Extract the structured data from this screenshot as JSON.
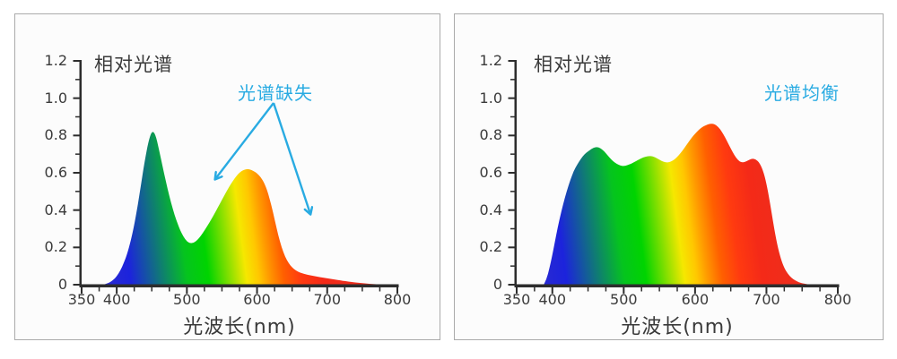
{
  "colors": {
    "page_bg": "#ffffff",
    "panel_bg": "#fcfcfc",
    "panel_border": "#ababab",
    "axis": "#2d2d2d",
    "text": "#3a3a3a",
    "accent_cyan": "#29abe2"
  },
  "spectrum_gradient": [
    {
      "wl": 380,
      "color": "#2b2bd0"
    },
    {
      "wl": 420,
      "color": "#1c23dc"
    },
    {
      "wl": 500,
      "color": "#05c41e"
    },
    {
      "wl": 530,
      "color": "#00d400"
    },
    {
      "wl": 560,
      "color": "#8ae000"
    },
    {
      "wl": 583,
      "color": "#f5e800"
    },
    {
      "wl": 600,
      "color": "#ffc800"
    },
    {
      "wl": 615,
      "color": "#ff9900"
    },
    {
      "wl": 635,
      "color": "#ff6000"
    },
    {
      "wl": 660,
      "color": "#ff3a10"
    },
    {
      "wl": 690,
      "color": "#f42a18"
    },
    {
      "wl": 780,
      "color": "#e83020"
    }
  ],
  "chart_data": [
    {
      "type": "area",
      "title": "相对光谱",
      "xlabel": "光波长(nm)",
      "annotation": {
        "text": "光谱缺失",
        "arrows": [
          {
            "from": [
              288,
              99
            ],
            "to": [
              223,
              184
            ]
          },
          {
            "from": [
              288,
              99
            ],
            "to": [
              329,
              223
            ]
          }
        ]
      },
      "x_range": [
        350,
        800
      ],
      "y_range": [
        0,
        1.2
      ],
      "x_ticks": [
        350,
        400,
        500,
        600,
        700,
        800
      ],
      "x_minor_step": 25,
      "y_ticks": [
        {
          "v": 0,
          "label": "0"
        },
        {
          "v": 0.2,
          "label": "0.2"
        },
        {
          "v": 0.4,
          "label": "0.4"
        },
        {
          "v": 0.6,
          "label": "0.6"
        },
        {
          "v": 0.8,
          "label": "0.8"
        },
        {
          "v": 1.0,
          "label": "1.0"
        },
        {
          "v": 1.2,
          "label": "1.2"
        }
      ],
      "y_minor_step": 0.1,
      "series": [
        {
          "x": [
            380,
            385,
            390,
            395,
            400,
            405,
            410,
            415,
            420,
            425,
            430,
            435,
            440,
            445,
            450,
            455,
            460,
            465,
            470,
            475,
            480,
            485,
            490,
            495,
            500,
            505,
            510,
            515,
            520,
            525,
            530,
            535,
            540,
            545,
            550,
            555,
            560,
            565,
            570,
            575,
            580,
            585,
            590,
            595,
            600,
            605,
            610,
            615,
            620,
            625,
            630,
            635,
            640,
            645,
            650,
            655,
            660,
            665,
            670,
            680,
            690,
            700,
            710,
            720,
            730,
            740,
            750,
            760,
            770,
            780
          ],
          "y": [
            0,
            0.005,
            0.012,
            0.025,
            0.045,
            0.075,
            0.115,
            0.165,
            0.235,
            0.32,
            0.425,
            0.545,
            0.665,
            0.765,
            0.825,
            0.81,
            0.73,
            0.64,
            0.555,
            0.475,
            0.405,
            0.345,
            0.295,
            0.258,
            0.232,
            0.222,
            0.225,
            0.24,
            0.262,
            0.29,
            0.32,
            0.352,
            0.385,
            0.42,
            0.455,
            0.49,
            0.523,
            0.553,
            0.58,
            0.601,
            0.614,
            0.62,
            0.618,
            0.61,
            0.597,
            0.578,
            0.548,
            0.5,
            0.432,
            0.35,
            0.268,
            0.2,
            0.15,
            0.115,
            0.092,
            0.077,
            0.067,
            0.06,
            0.055,
            0.047,
            0.04,
            0.034,
            0.028,
            0.022,
            0.017,
            0.012,
            0.008,
            0.005,
            0.003,
            0.001
          ]
        }
      ]
    },
    {
      "type": "area",
      "title": "相对光谱",
      "xlabel": "光波长(nm)",
      "annotation": {
        "text": "光谱均衡",
        "arrows": []
      },
      "x_range": [
        350,
        800
      ],
      "y_range": [
        0,
        1.2
      ],
      "x_ticks": [
        350,
        400,
        500,
        600,
        700,
        800
      ],
      "x_minor_step": 25,
      "y_ticks": [
        {
          "v": 0,
          "label": "0"
        },
        {
          "v": 0.2,
          "label": "0.2"
        },
        {
          "v": 0.4,
          "label": "0.4"
        },
        {
          "v": 0.6,
          "label": "0.6"
        },
        {
          "v": 0.8,
          "label": "0.8"
        },
        {
          "v": 1.0,
          "label": "1.0"
        },
        {
          "v": 1.2,
          "label": "1.2"
        }
      ],
      "y_minor_step": 0.1,
      "series": [
        {
          "x": [
            388,
            392,
            396,
            400,
            405,
            410,
            415,
            420,
            425,
            430,
            435,
            440,
            445,
            450,
            455,
            460,
            465,
            470,
            475,
            480,
            485,
            490,
            495,
            500,
            505,
            510,
            515,
            520,
            525,
            530,
            535,
            540,
            545,
            550,
            555,
            560,
            565,
            570,
            575,
            580,
            585,
            590,
            595,
            600,
            605,
            610,
            615,
            620,
            625,
            630,
            635,
            640,
            645,
            650,
            655,
            660,
            665,
            670,
            675,
            680,
            685,
            690,
            695,
            700,
            705,
            710,
            715,
            720,
            725,
            730,
            735,
            740,
            745,
            750,
            755,
            760
          ],
          "y": [
            0,
            0.03,
            0.09,
            0.16,
            0.26,
            0.35,
            0.43,
            0.5,
            0.56,
            0.61,
            0.645,
            0.675,
            0.7,
            0.715,
            0.728,
            0.738,
            0.737,
            0.725,
            0.705,
            0.682,
            0.662,
            0.648,
            0.639,
            0.636,
            0.64,
            0.648,
            0.658,
            0.668,
            0.678,
            0.686,
            0.69,
            0.689,
            0.681,
            0.67,
            0.66,
            0.655,
            0.658,
            0.668,
            0.685,
            0.707,
            0.733,
            0.76,
            0.787,
            0.81,
            0.83,
            0.845,
            0.855,
            0.862,
            0.863,
            0.855,
            0.835,
            0.805,
            0.768,
            0.73,
            0.695,
            0.668,
            0.655,
            0.658,
            0.668,
            0.676,
            0.673,
            0.655,
            0.615,
            0.545,
            0.44,
            0.32,
            0.215,
            0.14,
            0.09,
            0.058,
            0.037,
            0.023,
            0.014,
            0.008,
            0.004,
            0.001
          ]
        }
      ]
    }
  ]
}
